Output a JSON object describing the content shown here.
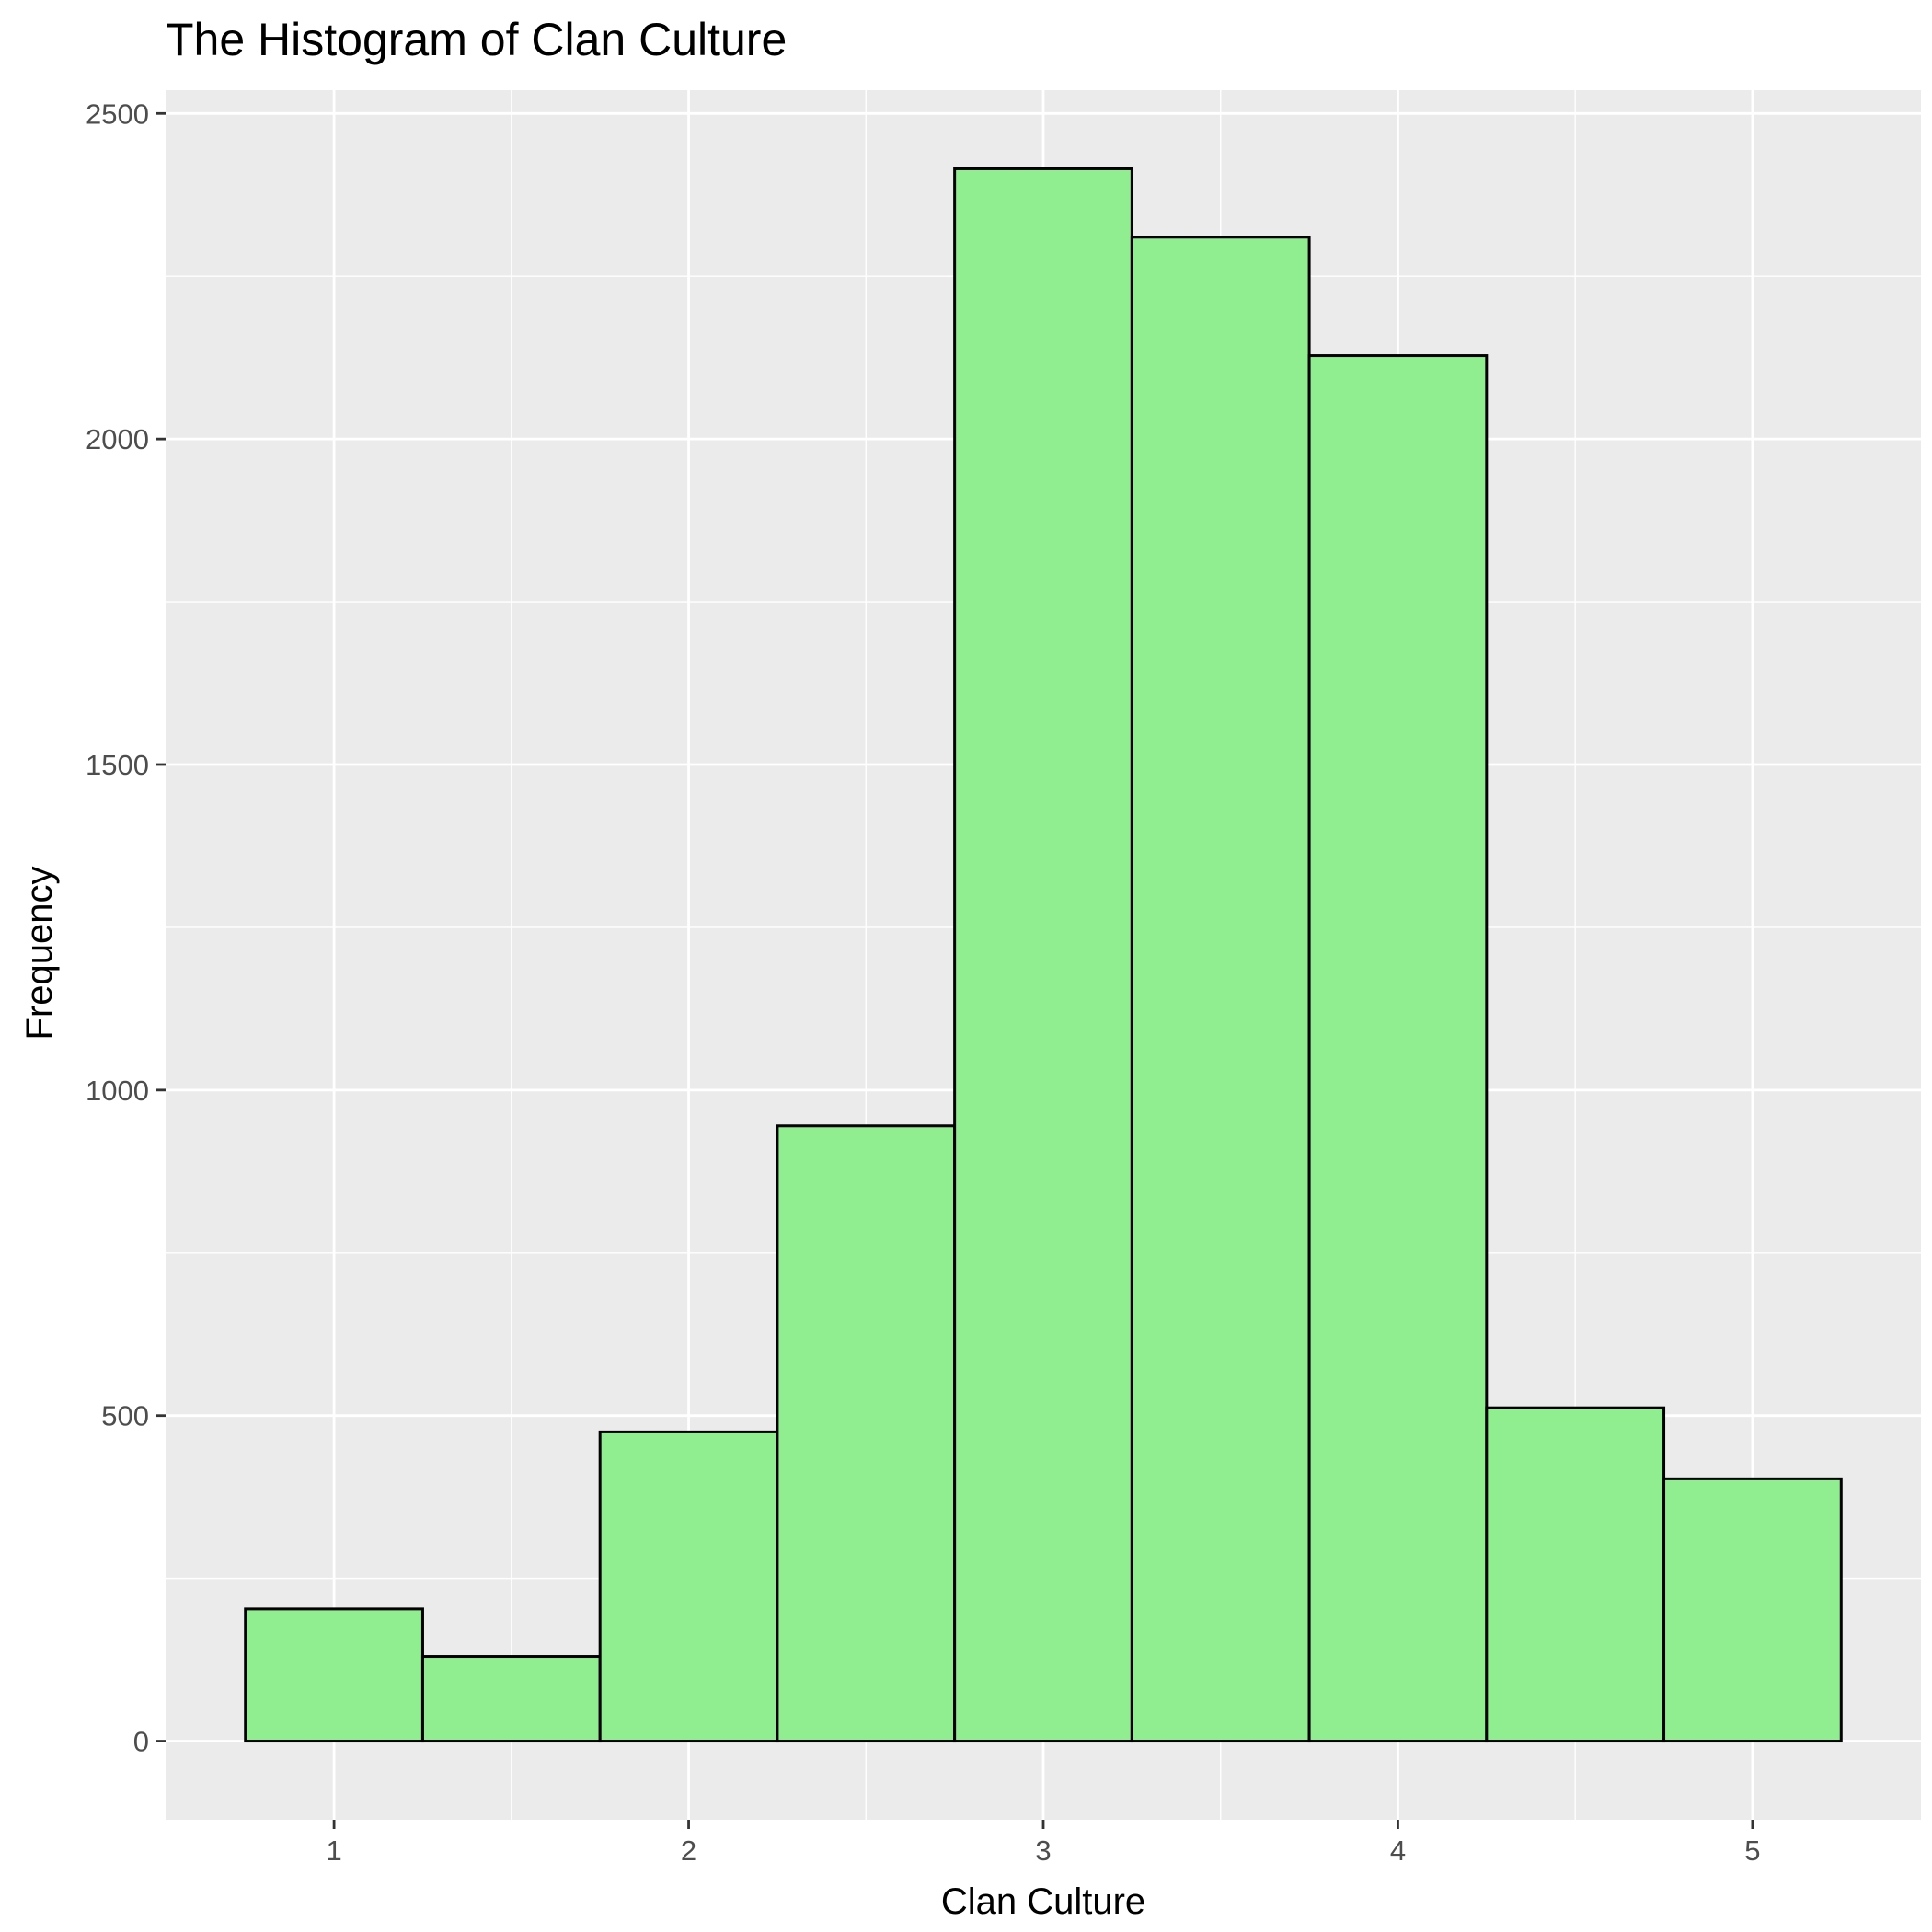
{
  "chart_data": {
    "type": "bar",
    "title": "The Histogram of Clan Culture",
    "xlabel": "Clan Culture",
    "ylabel": "Frequency",
    "bins": [
      {
        "x0": 0.75,
        "x1": 1.25,
        "value": 203
      },
      {
        "x0": 1.25,
        "x1": 1.75,
        "value": 130
      },
      {
        "x0": 1.75,
        "x1": 2.25,
        "value": 475
      },
      {
        "x0": 2.25,
        "x1": 2.75,
        "value": 945
      },
      {
        "x0": 2.75,
        "x1": 3.25,
        "value": 2415
      },
      {
        "x0": 3.25,
        "x1": 3.75,
        "value": 2310
      },
      {
        "x0": 3.75,
        "x1": 4.25,
        "value": 2128
      },
      {
        "x0": 4.25,
        "x1": 4.75,
        "value": 512
      },
      {
        "x0": 4.75,
        "x1": 5.25,
        "value": 403
      }
    ],
    "xlim": [
      0.525,
      5.475
    ],
    "ylim": [
      -120.75,
      2535.75
    ],
    "x_ticks": [
      "1",
      "2",
      "3",
      "4",
      "5"
    ],
    "y_ticks": [
      "0",
      "500",
      "1000",
      "1500",
      "2000",
      "2500"
    ],
    "grid": true,
    "fill_color": "#90ee90",
    "outline_color": "#000000",
    "panel_background": "#ebebeb",
    "grid_color": "#ffffff"
  }
}
